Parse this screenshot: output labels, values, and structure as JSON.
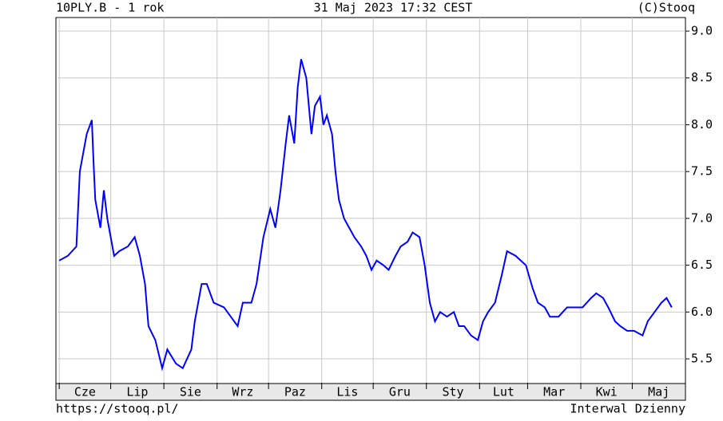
{
  "chart_data": {
    "type": "line",
    "title": "10PLY.B - 1 rok",
    "date": "31 Maj 2023 17:32 CEST",
    "copyright": "(C)Stooq",
    "url": "https://stooq.pl/",
    "interval": "Interwal Dzienny",
    "xlim": [
      0,
      366
    ],
    "xticks": [
      {
        "value": 1,
        "label": "Cze"
      },
      {
        "value": 31,
        "label": "Lip"
      },
      {
        "value": 62,
        "label": "Sie"
      },
      {
        "value": 93,
        "label": "Wrz"
      },
      {
        "value": 123,
        "label": "Paz"
      },
      {
        "value": 154,
        "label": "Lis"
      },
      {
        "value": 184,
        "label": "Gru"
      },
      {
        "value": 215,
        "label": "Sty"
      },
      {
        "value": 246,
        "label": "Lut"
      },
      {
        "value": 274,
        "label": "Mar"
      },
      {
        "value": 305,
        "label": "Kwi"
      },
      {
        "value": 335,
        "label": "Maj"
      }
    ],
    "ylim": [
      5.245,
      9.145
    ],
    "yticks": [
      5.5,
      {
        "value": 6,
        "label": "6.0"
      },
      6.5,
      {
        "value": 7,
        "label": "7.0"
      },
      7.5,
      {
        "value": 8,
        "label": "8.0"
      },
      8.5,
      {
        "value": 9,
        "label": "9.0"
      }
    ],
    "grid": true,
    "series": [
      {
        "color": "#0000ff",
        "x": [
          1,
          6,
          11,
          13,
          17,
          20,
          21,
          22,
          25,
          27,
          29,
          33,
          36,
          41,
          45,
          48,
          51,
          53,
          57,
          61,
          64,
          69,
          73,
          78,
          80,
          84,
          87,
          91,
          97,
          101,
          105,
          108,
          113,
          116,
          120,
          124,
          127,
          130,
          133,
          135,
          138,
          140,
          142,
          145,
          148,
          150,
          153,
          155,
          157,
          160,
          162,
          164,
          167,
          170,
          173,
          177,
          180,
          183,
          186,
          190,
          193,
          197,
          200,
          204,
          207,
          211,
          214,
          217,
          220,
          223,
          227,
          231,
          234,
          237,
          241,
          245,
          248,
          251,
          255,
          259,
          262,
          267,
          270,
          273,
          277,
          280,
          284,
          287,
          292,
          297,
          301,
          306,
          311,
          314,
          318,
          321,
          325,
          328,
          332,
          336,
          341,
          344,
          348,
          352,
          355,
          358
        ],
        "values": [
          6.55,
          6.6,
          6.7,
          7.5,
          7.9,
          8.05,
          7.6,
          7.2,
          6.9,
          7.3,
          7.0,
          6.6,
          6.65,
          6.7,
          6.8,
          6.6,
          6.3,
          5.85,
          5.7,
          5.4,
          5.6,
          5.45,
          5.4,
          5.6,
          5.9,
          6.3,
          6.3,
          6.1,
          6.05,
          5.95,
          5.85,
          6.1,
          6.1,
          6.3,
          6.8,
          7.1,
          6.9,
          7.3,
          7.8,
          8.1,
          7.8,
          8.4,
          8.7,
          8.5,
          7.9,
          8.2,
          8.3,
          8.0,
          8.1,
          7.9,
          7.5,
          7.2,
          7.0,
          6.9,
          6.8,
          6.7,
          6.6,
          6.45,
          6.55,
          6.5,
          6.45,
          6.6,
          6.7,
          6.75,
          6.85,
          6.8,
          6.5,
          6.1,
          5.9,
          6.0,
          5.95,
          6.0,
          5.85,
          5.85,
          5.75,
          5.7,
          5.9,
          6.0,
          6.1,
          6.4,
          6.65,
          6.6,
          6.55,
          6.5,
          6.25,
          6.1,
          6.05,
          5.95,
          5.95,
          6.05,
          6.05,
          6.05,
          6.15,
          6.2,
          6.15,
          6.05,
          5.9,
          5.85,
          5.8,
          5.8,
          5.75,
          5.9,
          6.0,
          6.1,
          6.15,
          6.05
        ]
      }
    ]
  }
}
